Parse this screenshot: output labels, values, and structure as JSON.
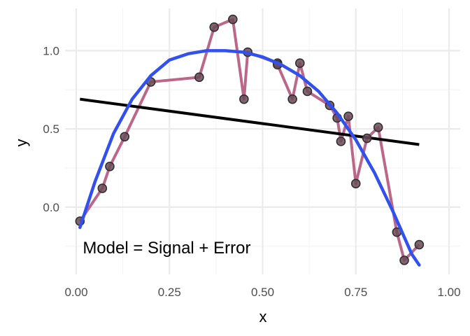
{
  "chart_data": {
    "type": "scatter",
    "xlabel": "x",
    "ylabel": "y",
    "xlim": [
      -0.03,
      1.03
    ],
    "ylim": [
      -0.43,
      1.27
    ],
    "x_major_ticks": [
      0.0,
      0.25,
      0.5,
      0.75,
      1.0
    ],
    "x_tick_labels": [
      "0.00",
      "0.25",
      "0.50",
      "0.75",
      "1.00"
    ],
    "x_minor_ticks": [
      0.125,
      0.375,
      0.625,
      0.875
    ],
    "y_major_ticks": [
      0.0,
      0.5,
      1.0
    ],
    "y_tick_labels": [
      "0.0",
      "0.5",
      "1.0"
    ],
    "y_minor_ticks": [
      -0.25,
      0.25,
      0.75
    ],
    "grid": true,
    "annotation": {
      "text": "Model = Signal + Error",
      "x": 0.01,
      "y": -0.26
    },
    "points": {
      "color": "#b5577d",
      "x": [
        0.01,
        0.07,
        0.09,
        0.13,
        0.2,
        0.33,
        0.37,
        0.42,
        0.45,
        0.46,
        0.54,
        0.54,
        0.58,
        0.6,
        0.62,
        0.68,
        0.7,
        0.71,
        0.73,
        0.75,
        0.78,
        0.81,
        0.86,
        0.88,
        0.92
      ],
      "y": [
        -0.09,
        0.12,
        0.26,
        0.45,
        0.8,
        0.83,
        1.15,
        1.2,
        0.69,
        0.99,
        0.92,
        0.91,
        0.69,
        0.92,
        0.74,
        0.65,
        0.57,
        0.42,
        0.58,
        0.15,
        0.44,
        0.51,
        -0.16,
        -0.34,
        -0.24
      ]
    },
    "signal_curve": {
      "color": "#3050f0",
      "x": [
        0.01,
        0.05,
        0.1,
        0.15,
        0.2,
        0.25,
        0.3,
        0.35,
        0.4,
        0.45,
        0.5,
        0.55,
        0.6,
        0.65,
        0.7,
        0.75,
        0.8,
        0.85,
        0.9,
        0.92
      ],
      "y": [
        -0.13,
        0.16,
        0.47,
        0.69,
        0.84,
        0.94,
        0.98,
        1.0,
        1.0,
        0.99,
        0.96,
        0.91,
        0.84,
        0.74,
        0.6,
        0.43,
        0.22,
        -0.03,
        -0.3,
        -0.37
      ]
    },
    "linear_fit": {
      "color": "#000000",
      "x": [
        0.01,
        0.92
      ],
      "y": [
        0.69,
        0.4
      ]
    }
  }
}
